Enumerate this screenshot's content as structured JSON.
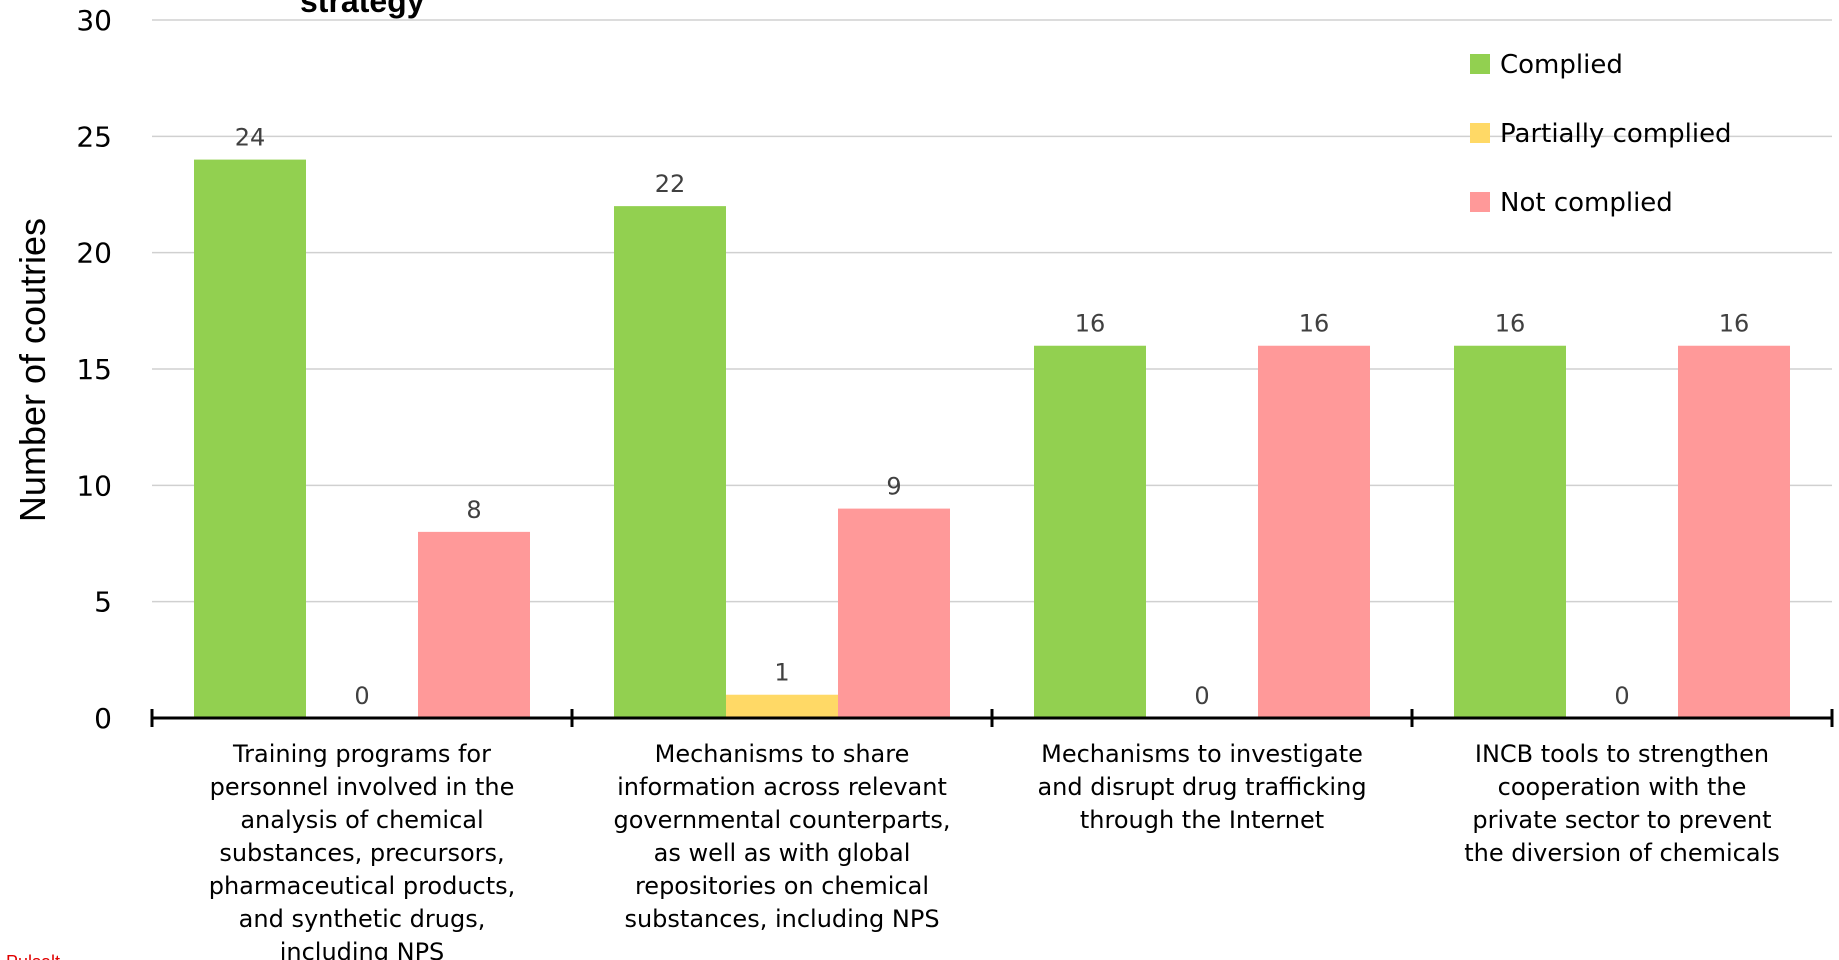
{
  "chart_data": {
    "type": "bar",
    "title_fragment": "strategy",
    "corner_fragment": "Pulsalt",
    "ylabel": "Number of coutries",
    "xlabel": "",
    "ylim": [
      0,
      30
    ],
    "yticks": [
      0,
      5,
      10,
      15,
      20,
      25,
      30
    ],
    "grid": true,
    "legend_position": "top-right",
    "categories": [
      [
        "Training programs for",
        "personnel involved in the",
        "analysis of chemical",
        "substances, precursors,",
        "pharmaceutical products,",
        "and synthetic drugs,",
        "including NPS"
      ],
      [
        "Mechanisms to share",
        "information across relevant",
        "governmental counterparts,",
        "as well as with global",
        "repositories on chemical",
        "substances, including NPS"
      ],
      [
        "Mechanisms to investigate",
        "and disrupt drug trafficking",
        "through the Internet"
      ],
      [
        "INCB tools to strengthen",
        "cooperation with the",
        "private sector to prevent",
        "the diversion of chemicals"
      ]
    ],
    "series": [
      {
        "name": "Complied",
        "color": "#92d050",
        "values": [
          24,
          22,
          16,
          16
        ]
      },
      {
        "name": "Partially complied",
        "color": "#ffd966",
        "values": [
          0,
          1,
          0,
          0
        ]
      },
      {
        "name": "Not complied",
        "color": "#ff9999",
        "values": [
          8,
          9,
          16,
          16
        ]
      }
    ]
  }
}
